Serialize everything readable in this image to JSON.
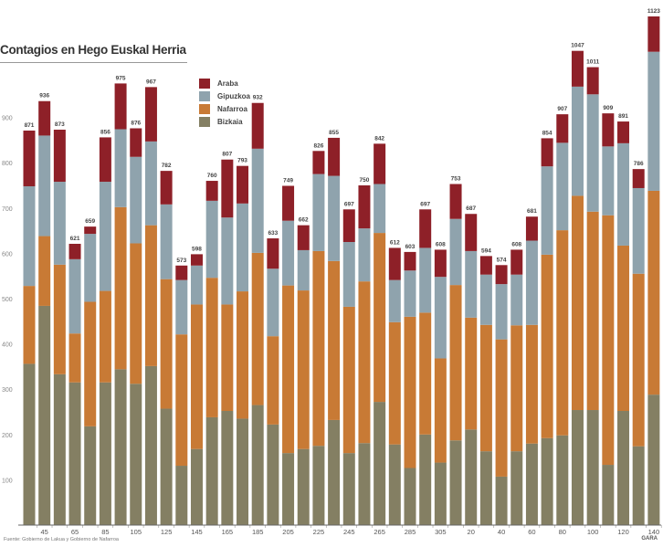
{
  "chart_data": {
    "type": "bar",
    "stacked": true,
    "title": "Contagios en Hego Euskal Herria",
    "source": "Fuente: Gobierno de Lakua y Gobierno de Nafarroa",
    "brand": "GARA",
    "xlabel": "",
    "ylabel": "",
    "ylim": [
      0,
      1150
    ],
    "y_ticks": [
      100,
      200,
      300,
      400,
      500,
      600,
      700,
      800,
      900
    ],
    "x_tick_labels": [
      "45",
      "65",
      "85",
      "105",
      "125",
      "145",
      "165",
      "185",
      "205",
      "225",
      "245",
      "265",
      "285",
      "305",
      "20",
      "40",
      "60",
      "80",
      "100",
      "120",
      "140"
    ],
    "legend": [
      "Araba",
      "Gipuzkoa",
      "Nafarroa",
      "Bizkaia"
    ],
    "legend_position": "top-left",
    "grid": false,
    "colors": {
      "Araba": "#8e2028",
      "Gipuzkoa": "#8fa3ad",
      "Nafarroa": "#c87a35",
      "Bizkaia": "#847f63"
    },
    "totals": [
      871,
      936,
      873,
      621,
      659,
      856,
      975,
      876,
      967,
      782,
      573,
      598,
      760,
      807,
      793,
      932,
      633,
      749,
      662,
      826,
      855,
      697,
      750,
      842,
      612,
      603,
      697,
      608,
      753,
      687,
      594,
      574,
      608,
      681,
      854,
      907,
      1047,
      1011,
      909,
      891,
      786,
      1123
    ],
    "series": [
      {
        "name": "Bizkaia",
        "values": [
          356,
          484,
          333,
          315,
          218,
          315,
          344,
          312,
          351,
          257,
          131,
          168,
          238,
          252,
          235,
          265,
          222,
          159,
          168,
          175,
          232,
          159,
          181,
          272,
          178,
          126,
          200,
          138,
          187,
          211,
          163,
          107,
          163,
          180,
          192,
          198,
          254,
          254,
          133,
          252,
          174,
          288
        ]
      },
      {
        "name": "Nafarroa",
        "values": [
          172,
          154,
          242,
          108,
          275,
          202,
          358,
          310,
          311,
          286,
          290,
          319,
          308,
          235,
          281,
          336,
          195,
          370,
          350,
          430,
          351,
          323,
          357,
          373,
          270,
          334,
          269,
          230,
          343,
          247,
          279,
          303,
          278,
          262,
          405,
          453,
          473,
          438,
          551,
          365,
          381,
          450
        ]
      },
      {
        "name": "Gipuzkoa",
        "values": [
          220,
          222,
          183,
          164,
          150,
          241,
          172,
          191,
          185,
          165,
          120,
          86,
          170,
          192,
          194,
          230,
          149,
          143,
          89,
          170,
          188,
          143,
          117,
          108,
          93,
          102,
          143,
          180,
          146,
          147,
          111,
          122,
          112,
          186,
          195,
          193,
          241,
          259,
          152,
          226,
          189,
          307
        ]
      },
      {
        "name": "Araba",
        "values": [
          123,
          76,
          115,
          34,
          16,
          98,
          101,
          63,
          120,
          74,
          32,
          25,
          44,
          128,
          83,
          101,
          67,
          77,
          55,
          51,
          84,
          72,
          95,
          89,
          71,
          41,
          85,
          60,
          77,
          82,
          41,
          42,
          55,
          53,
          62,
          63,
          79,
          60,
          73,
          48,
          42,
          78
        ]
      }
    ]
  }
}
